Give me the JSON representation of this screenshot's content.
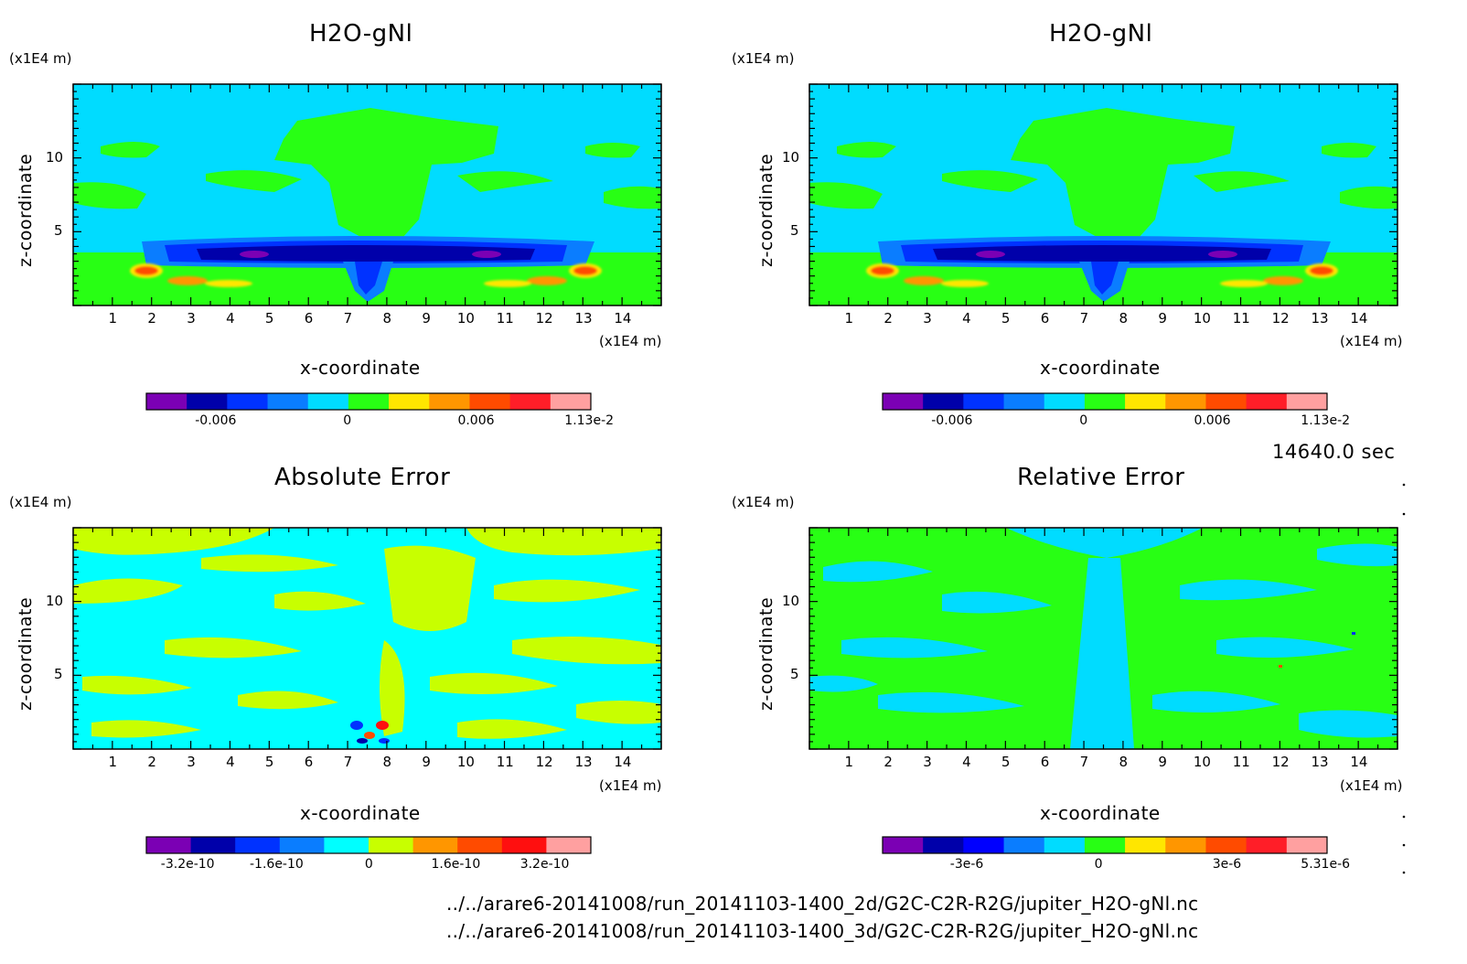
{
  "time_label": "14640.0 sec",
  "files": [
    "../../arare6-20141008/run_20141103-1400_2d/G2C-C2R-R2G/jupiter_H2O-gNl.nc",
    "../../arare6-20141008/run_20141103-1400_3d/G2C-C2R-R2G/jupiter_H2O-gNl.nc"
  ],
  "chart_data": [
    {
      "type": "heatmap",
      "title": "H2O-gNl",
      "xlabel": "x-coordinate",
      "ylabel": "z-coordinate",
      "x_unit": "(x1E4 m)",
      "y_unit": "(x1E4 m)",
      "xlim": [
        0,
        15
      ],
      "ylim": [
        0,
        15
      ],
      "x_ticks": [
        "1",
        "2",
        "3",
        "4",
        "5",
        "6",
        "7",
        "8",
        "9",
        "10",
        "11",
        "12",
        "13",
        "14"
      ],
      "y_ticks": [
        "5",
        "10"
      ],
      "colorbar": {
        "colors": [
          "#7b00b4",
          "#0000aa",
          "#0032ff",
          "#0a7dff",
          "#00dcff",
          "#28ff14",
          "#ffe600",
          "#ff9600",
          "#ff4b00",
          "#ff1e28",
          "#ffa0a0"
        ],
        "labels": [
          "-0.006",
          "0",
          "0.006",
          "1.13e-2"
        ],
        "label_values": [
          -0.006,
          0,
          0.006,
          0.0113
        ],
        "min": -0.0093,
        "max": 0.0113
      }
    },
    {
      "type": "heatmap",
      "title": "H2O-gNl",
      "xlabel": "x-coordinate",
      "ylabel": "z-coordinate",
      "x_unit": "(x1E4 m)",
      "y_unit": "(x1E4 m)",
      "xlim": [
        0,
        15
      ],
      "ylim": [
        0,
        15
      ],
      "x_ticks": [
        "1",
        "2",
        "3",
        "4",
        "5",
        "6",
        "7",
        "8",
        "9",
        "10",
        "11",
        "12",
        "13",
        "14"
      ],
      "y_ticks": [
        "5",
        "10"
      ],
      "colorbar": {
        "colors": [
          "#7b00b4",
          "#0000aa",
          "#0032ff",
          "#0a7dff",
          "#00dcff",
          "#28ff14",
          "#ffe600",
          "#ff9600",
          "#ff4b00",
          "#ff1e28",
          "#ffa0a0"
        ],
        "labels": [
          "-0.006",
          "0",
          "0.006",
          "1.13e-2"
        ],
        "label_values": [
          -0.006,
          0,
          0.006,
          0.0113
        ],
        "min": -0.0093,
        "max": 0.0113
      }
    },
    {
      "type": "heatmap",
      "title": "Absolute Error",
      "xlabel": "x-coordinate",
      "ylabel": "z-coordinate",
      "x_unit": "(x1E4 m)",
      "y_unit": "(x1E4 m)",
      "xlim": [
        0,
        15
      ],
      "ylim": [
        0,
        15
      ],
      "x_ticks": [
        "1",
        "2",
        "3",
        "4",
        "5",
        "6",
        "7",
        "8",
        "9",
        "10",
        "11",
        "12",
        "13",
        "14"
      ],
      "y_ticks": [
        "5",
        "10"
      ],
      "colorbar": {
        "colors": [
          "#7b00b4",
          "#0000aa",
          "#0032ff",
          "#0a7dff",
          "#00ffff",
          "#c8ff00",
          "#ff9600",
          "#ff4b00",
          "#ff0f0f",
          "#ffa0a0"
        ],
        "labels": [
          "-3.2e-10",
          "-1.6e-10",
          "0",
          "1.6e-10",
          "3.2e-10"
        ],
        "label_values": [
          -3.2e-10,
          -1.6e-10,
          0,
          1.6e-10,
          3.2e-10
        ],
        "min": -4e-10,
        "max": 4e-10
      }
    },
    {
      "type": "heatmap",
      "title": "Relative Error",
      "xlabel": "x-coordinate",
      "ylabel": "z-coordinate",
      "x_unit": "(x1E4 m)",
      "y_unit": "(x1E4 m)",
      "xlim": [
        0,
        15
      ],
      "ylim": [
        0,
        15
      ],
      "x_ticks": [
        "1",
        "2",
        "3",
        "4",
        "5",
        "6",
        "7",
        "8",
        "9",
        "10",
        "11",
        "12",
        "13",
        "14"
      ],
      "y_ticks": [
        "5",
        "10"
      ],
      "colorbar": {
        "colors": [
          "#7b00b4",
          "#0000aa",
          "#0000ff",
          "#0a7dff",
          "#00dcff",
          "#28ff14",
          "#ffe600",
          "#ff9600",
          "#ff4b00",
          "#ff1e28",
          "#ffa0a0"
        ],
        "labels": [
          "-3e-6",
          "0",
          "3e-6",
          "5.31e-6"
        ],
        "label_values": [
          -3e-06,
          0,
          3e-06,
          5.31e-06
        ],
        "min": -5e-06,
        "max": 5.31e-06
      }
    }
  ]
}
